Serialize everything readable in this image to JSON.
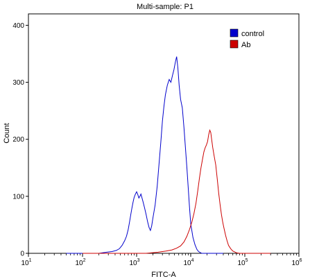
{
  "chart_data": {
    "type": "line",
    "title": "Multi-sample: P1",
    "xlabel": "FITC-A",
    "ylabel": "Count",
    "x_scale": "log",
    "xlim": [
      10,
      1000000
    ],
    "ylim": [
      0,
      420
    ],
    "x_ticks": [
      {
        "base": "10",
        "exp": "1",
        "value": 10
      },
      {
        "base": "10",
        "exp": "2",
        "value": 100
      },
      {
        "base": "10",
        "exp": "3",
        "value": 1000
      },
      {
        "base": "10",
        "exp": "4",
        "value": 10000
      },
      {
        "base": "10",
        "exp": "5",
        "value": 100000
      },
      {
        "base": "10",
        "exp": "6",
        "value": 1000000
      }
    ],
    "y_ticks": [
      "0",
      "100",
      "200",
      "300",
      "400"
    ],
    "y_tick_values": [
      0,
      100,
      200,
      300,
      400
    ],
    "grid": false,
    "legend": {
      "position": "top-right"
    },
    "series": [
      {
        "name": "control",
        "color": "#0000cc",
        "points": [
          [
            50,
            0
          ],
          [
            200,
            0
          ],
          [
            280,
            2
          ],
          [
            350,
            3
          ],
          [
            420,
            5
          ],
          [
            480,
            8
          ],
          [
            540,
            14
          ],
          [
            600,
            22
          ],
          [
            650,
            30
          ],
          [
            700,
            42
          ],
          [
            740,
            55
          ],
          [
            780,
            68
          ],
          [
            820,
            80
          ],
          [
            860,
            90
          ],
          [
            900,
            98
          ],
          [
            950,
            104
          ],
          [
            1000,
            108
          ],
          [
            1050,
            103
          ],
          [
            1100,
            97
          ],
          [
            1150,
            100
          ],
          [
            1200,
            104
          ],
          [
            1300,
            92
          ],
          [
            1400,
            80
          ],
          [
            1500,
            68
          ],
          [
            1600,
            55
          ],
          [
            1700,
            45
          ],
          [
            1800,
            40
          ],
          [
            1900,
            48
          ],
          [
            2000,
            62
          ],
          [
            2200,
            85
          ],
          [
            2400,
            118
          ],
          [
            2600,
            158
          ],
          [
            2800,
            195
          ],
          [
            3000,
            232
          ],
          [
            3200,
            258
          ],
          [
            3400,
            278
          ],
          [
            3700,
            295
          ],
          [
            4000,
            305
          ],
          [
            4300,
            300
          ],
          [
            4600,
            312
          ],
          [
            4900,
            322
          ],
          [
            5200,
            335
          ],
          [
            5500,
            345
          ],
          [
            5800,
            325
          ],
          [
            6100,
            295
          ],
          [
            6500,
            270
          ],
          [
            7000,
            255
          ],
          [
            7500,
            220
          ],
          [
            8000,
            185
          ],
          [
            8500,
            150
          ],
          [
            9000,
            115
          ],
          [
            9500,
            80
          ],
          [
            10000,
            52
          ],
          [
            11000,
            28
          ],
          [
            12000,
            15
          ],
          [
            13000,
            7
          ],
          [
            14000,
            3
          ],
          [
            16000,
            0
          ],
          [
            40000,
            0
          ]
        ]
      },
      {
        "name": "Ab",
        "color": "#cc0000",
        "points": [
          [
            100,
            0
          ],
          [
            1500,
            0
          ],
          [
            2500,
            2
          ],
          [
            3500,
            4
          ],
          [
            4500,
            6
          ],
          [
            5500,
            9
          ],
          [
            6500,
            13
          ],
          [
            7500,
            20
          ],
          [
            8500,
            30
          ],
          [
            9500,
            42
          ],
          [
            10500,
            55
          ],
          [
            11500,
            70
          ],
          [
            12500,
            88
          ],
          [
            13500,
            110
          ],
          [
            14500,
            132
          ],
          [
            15500,
            150
          ],
          [
            16500,
            165
          ],
          [
            17500,
            178
          ],
          [
            18500,
            185
          ],
          [
            19500,
            190
          ],
          [
            20500,
            196
          ],
          [
            21500,
            208
          ],
          [
            22500,
            216
          ],
          [
            23500,
            212
          ],
          [
            24500,
            198
          ],
          [
            25500,
            186
          ],
          [
            27000,
            172
          ],
          [
            29000,
            155
          ],
          [
            31000,
            130
          ],
          [
            33000,
            105
          ],
          [
            35000,
            85
          ],
          [
            37000,
            68
          ],
          [
            39000,
            55
          ],
          [
            41000,
            45
          ],
          [
            44000,
            32
          ],
          [
            47000,
            22
          ],
          [
            50000,
            14
          ],
          [
            55000,
            8
          ],
          [
            60000,
            4
          ],
          [
            70000,
            1
          ],
          [
            80000,
            0
          ],
          [
            300000,
            0
          ]
        ]
      }
    ]
  }
}
